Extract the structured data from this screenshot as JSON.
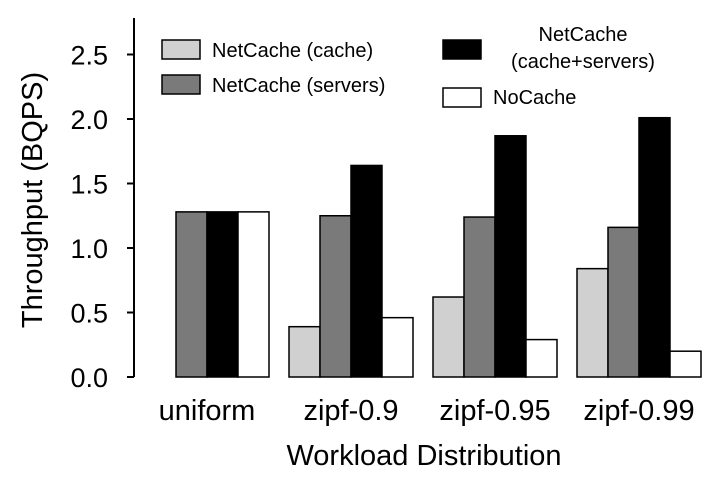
{
  "chart_data": {
    "type": "bar",
    "title": "",
    "xlabel": "Workload Distribution",
    "ylabel": "Throughput (BQPS)",
    "ylim": [
      0,
      2.7
    ],
    "yticks": [
      "0.0",
      "0.5",
      "1.0",
      "1.5",
      "2.0",
      "2.5"
    ],
    "categories": [
      "uniform",
      "zipf-0.9",
      "zipf-0.95",
      "zipf-0.99"
    ],
    "series": [
      {
        "name": "NetCache (cache)",
        "color": "#d0d0d0",
        "values": [
          0.0,
          0.39,
          0.62,
          0.84
        ]
      },
      {
        "name": "NetCache (servers)",
        "color": "#7a7a7a",
        "values": [
          1.28,
          1.25,
          1.24,
          1.16
        ]
      },
      {
        "name": "NetCache (cache+servers)",
        "legend_lines": [
          "NetCache",
          "(cache+servers)"
        ],
        "color": "#000000",
        "values": [
          1.28,
          1.64,
          1.87,
          2.01
        ]
      },
      {
        "name": "NoCache",
        "color": "#ffffff",
        "values": [
          1.28,
          0.46,
          0.29,
          0.2
        ]
      }
    ],
    "grid": false,
    "legend_position": "top"
  }
}
